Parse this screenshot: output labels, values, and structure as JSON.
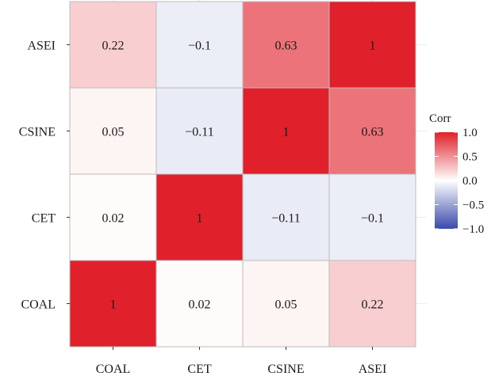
{
  "chart_data": {
    "type": "heatmap",
    "x_categories": [
      "COAL",
      "CET",
      "CSINE",
      "ASEI"
    ],
    "y_categories": [
      "COAL",
      "CET",
      "CSINE",
      "ASEI"
    ],
    "values": [
      [
        1,
        0.02,
        0.05,
        0.22
      ],
      [
        0.02,
        1,
        -0.11,
        -0.1
      ],
      [
        0.05,
        -0.11,
        1,
        0.63
      ],
      [
        0.22,
        -0.1,
        0.63,
        1
      ]
    ],
    "value_labels": [
      [
        "1",
        "0.02",
        "0.05",
        "0.22"
      ],
      [
        "0.02",
        "1",
        "−0.11",
        "−0.1"
      ],
      [
        "0.05",
        "−0.11",
        "1",
        "0.63"
      ],
      [
        "0.22",
        "−0.1",
        "0.63",
        "1"
      ]
    ],
    "title": "",
    "xlabel": "",
    "ylabel": "",
    "legend": {
      "title": "Corr",
      "position": "right",
      "range": [
        -1,
        1
      ],
      "ticks": [
        1.0,
        0.5,
        0.0,
        -0.5,
        -1.0
      ],
      "tick_labels": [
        "1.0",
        "0.5",
        "0.0",
        "−0.5",
        "−1.0"
      ]
    },
    "colors": {
      "high": "#e0202a",
      "mid": "#ffffff",
      "low": "#3949ab"
    },
    "grid": true
  }
}
